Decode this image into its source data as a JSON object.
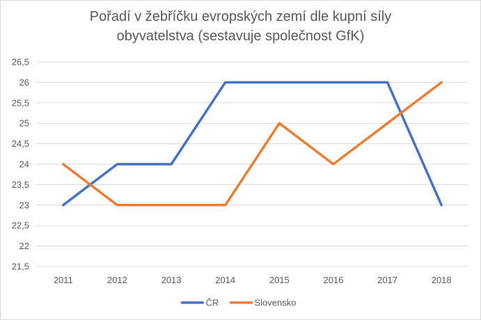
{
  "chart_data": {
    "type": "line",
    "title_line1": "Pořadí v žebříčku evropských zemí dle kupní síly",
    "title_line2": "obyvatelstva (sestavuje společnost GfK)",
    "xlabel": "",
    "ylabel": "",
    "categories": [
      "2011",
      "2012",
      "2013",
      "2014",
      "2015",
      "2016",
      "2017",
      "2018"
    ],
    "ylim": [
      21.5,
      26.5
    ],
    "yticks": [
      21.5,
      22,
      22.5,
      23,
      23.5,
      24,
      24.5,
      25,
      25.5,
      26,
      26.5
    ],
    "ytick_labels": [
      "21,5",
      "22",
      "22,5",
      "23",
      "23,5",
      "24",
      "24,5",
      "25",
      "25,5",
      "26",
      "26,5"
    ],
    "grid": true,
    "legend_position": "bottom",
    "series": [
      {
        "name": "ČR",
        "color": "#4472c4",
        "values": [
          23,
          24,
          24,
          26,
          26,
          26,
          26,
          23
        ]
      },
      {
        "name": "Slovensko",
        "color": "#ed7d31",
        "values": [
          24,
          23,
          23,
          23,
          25,
          24,
          25,
          26
        ]
      }
    ]
  }
}
